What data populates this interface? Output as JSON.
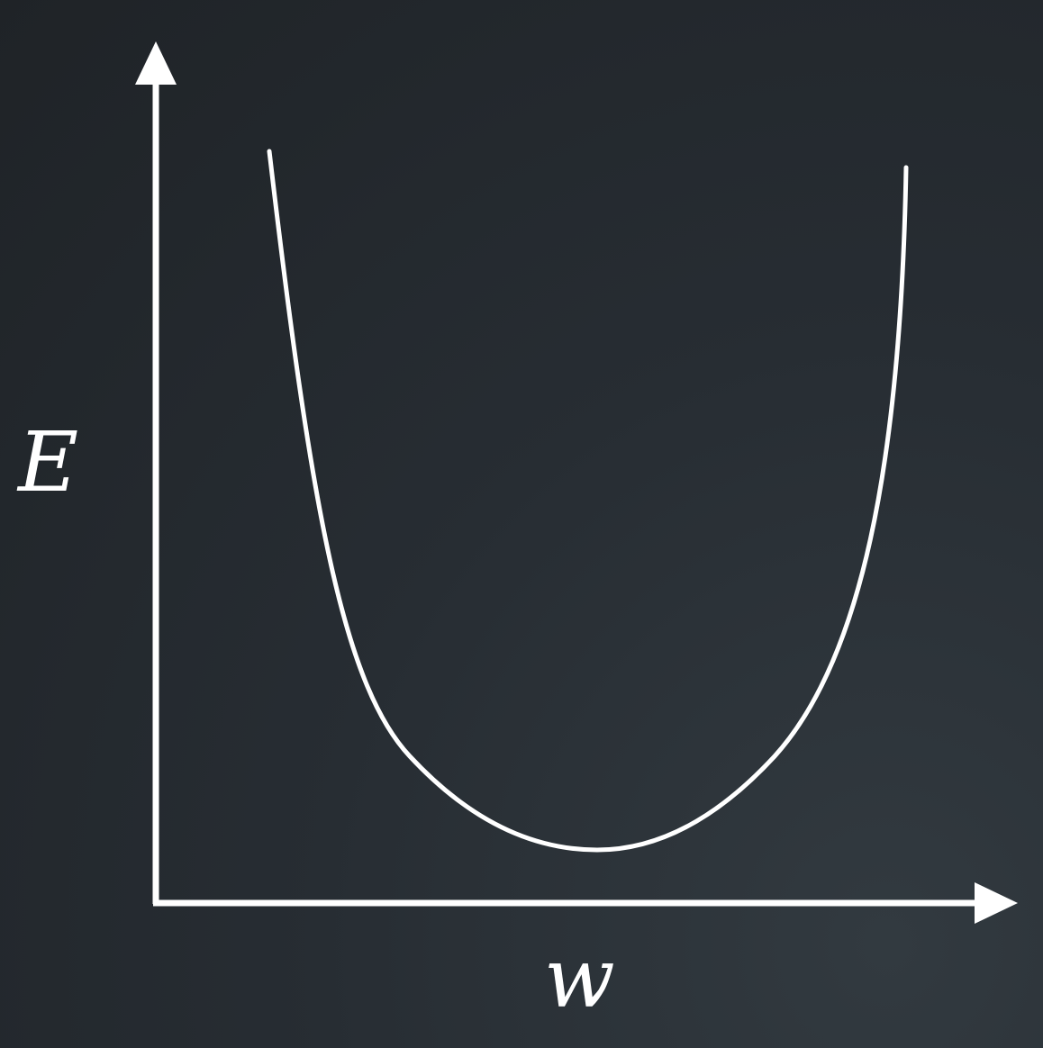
{
  "diagram": {
    "type": "line",
    "xlabel": "w",
    "ylabel": "E",
    "curve_shape": "u-shaped convex curve with a single minimum",
    "colors": {
      "background": "#262b31",
      "foreground": "#ffffff"
    }
  }
}
